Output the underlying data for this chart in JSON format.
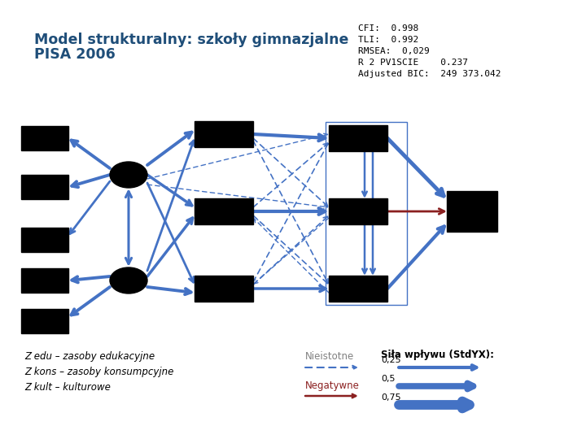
{
  "title_line1": "Model strukturalny: szkoły gimnazjalne",
  "title_line2": "PISA 2006",
  "title_color": "#1F4E79",
  "stats_text": "CFI:  0.998\nTLI:  0.992\nRMSEA:  0,029\nR 2 PV1SCIE    0.237\nAdjusted BIC:  249 373.042",
  "bg_color": "#FFFFFF",
  "arrow_color": "#4472C4",
  "arrow_color_neg": "#8B2020",
  "box_color": "#000000",
  "legend_note": "Z edu – zasoby edukacyjne\nZ kons – zasoby konsumpcyjne\nZ kult – kulturowe",
  "legend_nieistotne": "Nieistotne",
  "legend_negatywne": "Negatywne",
  "legend_sila": "Siła wpływu (StdYX):",
  "sila_values": [
    "0,25",
    "0,5",
    "0,75"
  ]
}
